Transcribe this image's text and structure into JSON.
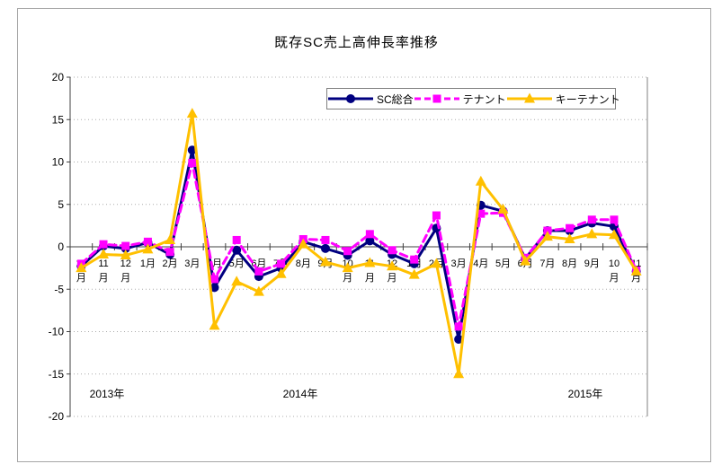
{
  "chart_data": {
    "type": "line",
    "title": "既存SC売上高伸長率推移",
    "ylabel": "",
    "xlabel": "",
    "ylim": [
      -20,
      20
    ],
    "yticks": [
      20,
      15,
      10,
      5,
      0,
      -5,
      -10,
      -15,
      -20
    ],
    "grid": "horizontal-dotted",
    "legend_position": "top-center-inside",
    "x_labels": [
      "10月",
      "11月",
      "12月",
      "1月",
      "2月",
      "3月",
      "4月",
      "5月",
      "6月",
      "7月",
      "8月",
      "9月",
      "10月",
      "11月",
      "12月",
      "1月",
      "2月",
      "3月",
      "4月",
      "5月",
      "6月",
      "7月",
      "8月",
      "9月",
      "10月",
      "11月"
    ],
    "year_labels": [
      {
        "text": "2013年"
      },
      {
        "text": "2014年"
      },
      {
        "text": "2015年"
      }
    ],
    "series": [
      {
        "name": "SC総合",
        "key": "sc-total",
        "color": "#000080",
        "marker": "circle",
        "line_style": "solid",
        "values": [
          -2.3,
          0.1,
          -0.2,
          0.5,
          -0.9,
          11.4,
          -4.8,
          -0.4,
          -3.5,
          -2.5,
          0.6,
          -0.2,
          -1.0,
          0.7,
          -0.9,
          -2.0,
          2.2,
          -10.9,
          4.9,
          4.2,
          -1.4,
          1.9,
          1.9,
          2.8,
          2.4,
          -2.9
        ]
      },
      {
        "name": "テナント",
        "key": "tenant",
        "color": "#FF00FF",
        "marker": "square",
        "line_style": "dashed",
        "values": [
          -2.0,
          0.3,
          0.1,
          0.6,
          -0.6,
          9.9,
          -3.8,
          0.8,
          -2.9,
          -2.0,
          0.9,
          0.8,
          -0.5,
          1.5,
          -0.4,
          -1.5,
          3.7,
          -9.4,
          3.9,
          4.0,
          -1.3,
          1.9,
          2.2,
          3.2,
          3.2,
          -2.8
        ]
      },
      {
        "name": "キーテナント",
        "key": "key-tenant",
        "color": "#FFC000",
        "marker": "triangle",
        "line_style": "solid",
        "values": [
          -2.5,
          -0.9,
          -1.0,
          -0.3,
          0.8,
          15.7,
          -9.3,
          -4.1,
          -5.3,
          -3.2,
          0.3,
          -1.8,
          -2.5,
          -1.9,
          -2.3,
          -3.3,
          -2.0,
          -15.0,
          7.7,
          4.4,
          -1.7,
          1.2,
          0.9,
          1.5,
          1.4,
          -2.9
        ]
      }
    ]
  }
}
